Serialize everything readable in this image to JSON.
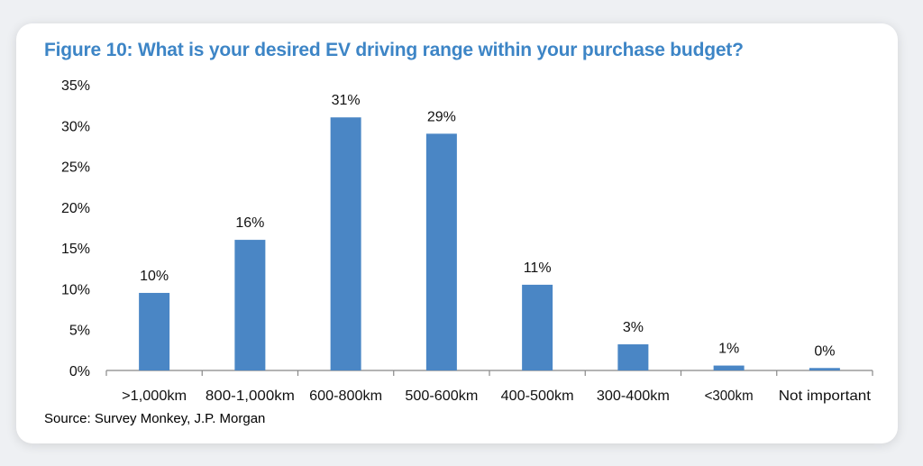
{
  "title": "Figure 10: What is your desired EV driving range within your purchase budget?",
  "source": "Source: Survey Monkey, J.P. Morgan",
  "colors": {
    "bar": "#4a86c5",
    "title": "#3d85c6",
    "axis": "#888888"
  },
  "chart_data": {
    "type": "bar",
    "title": "Figure 10: What is your desired EV driving range within your purchase budget?",
    "categories": [
      ">1,000km",
      "800-1,000km",
      "600-800km",
      "500-600km",
      "400-500km",
      "300-400km",
      "<300km",
      "Not important"
    ],
    "values": [
      9.5,
      16,
      31,
      29,
      10.5,
      3.2,
      0.6,
      0.3
    ],
    "data_labels": [
      "10%",
      "16%",
      "31%",
      "29%",
      "11%",
      "3%",
      "1%",
      "0%"
    ],
    "yticks": [
      "0%",
      "5%",
      "10%",
      "15%",
      "20%",
      "25%",
      "30%",
      "35%"
    ],
    "ylim": [
      0,
      35
    ],
    "xlabel": "",
    "ylabel": "",
    "grid": false,
    "legend": "none"
  }
}
